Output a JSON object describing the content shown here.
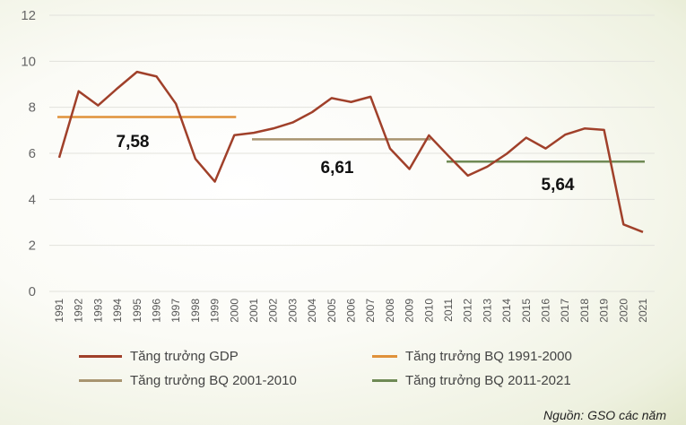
{
  "chart_data": {
    "type": "line",
    "x": [
      1991,
      1992,
      1993,
      1994,
      1995,
      1996,
      1997,
      1998,
      1999,
      2000,
      2001,
      2002,
      2003,
      2004,
      2005,
      2006,
      2007,
      2008,
      2009,
      2010,
      2011,
      2012,
      2013,
      2014,
      2015,
      2016,
      2017,
      2018,
      2019,
      2020,
      2021
    ],
    "ylim": [
      0,
      12
    ],
    "yticks": [
      0,
      2,
      4,
      6,
      8,
      10,
      12
    ],
    "grid": true,
    "legend_placement": "bottom",
    "series": [
      {
        "name": "Tăng trưởng GDP",
        "color": "#a0402a",
        "values": [
          5.81,
          8.7,
          8.08,
          8.83,
          9.54,
          9.34,
          8.15,
          5.76,
          4.77,
          6.79,
          6.89,
          7.08,
          7.34,
          7.79,
          8.4,
          8.23,
          8.46,
          6.21,
          5.32,
          6.78,
          5.89,
          5.03,
          5.42,
          5.98,
          6.68,
          6.21,
          6.81,
          7.08,
          7.02,
          2.91,
          2.58
        ]
      },
      {
        "name": "Tăng trưởng BQ 1991-2000",
        "color": "#e0913a",
        "value": 7.58,
        "from": 1991,
        "to": 2000,
        "label": "7,58"
      },
      {
        "name": "Tăng trưởng BQ 2001-2010",
        "color": "#a89470",
        "value": 6.61,
        "from": 2001,
        "to": 2010,
        "label": "6,61"
      },
      {
        "name": "Tăng trưởng BQ 2011-2021",
        "color": "#6f8a55",
        "value": 5.64,
        "from": 2011,
        "to": 2021,
        "label": "5,64"
      }
    ]
  },
  "source": "Nguồn: GSO các năm"
}
